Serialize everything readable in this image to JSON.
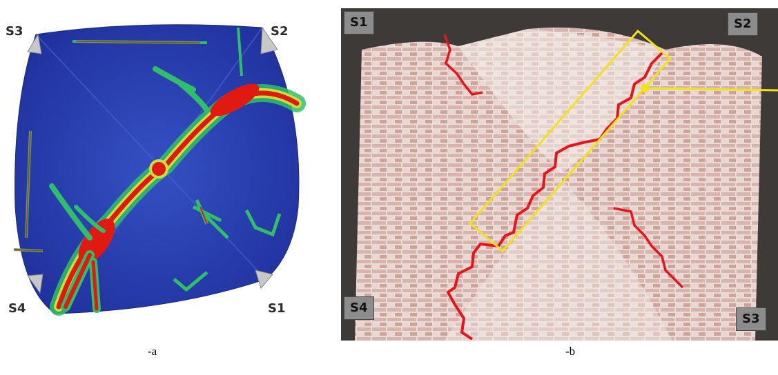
{
  "panel_a": {
    "labels": {
      "s1": "S1",
      "s2": "S2",
      "s3": "S3",
      "s4": "S4"
    },
    "caption": "-a"
  },
  "panel_b": {
    "labels": {
      "s1": "S1",
      "s2": "S2",
      "s3": "S3",
      "s4": "S4"
    },
    "caption": "-b"
  },
  "colors": {
    "fem_background": "#2a3fb0",
    "fem_high_stress": "#e01a10",
    "crack_line": "#e8141c",
    "highlight_box": "#f2e21a"
  }
}
